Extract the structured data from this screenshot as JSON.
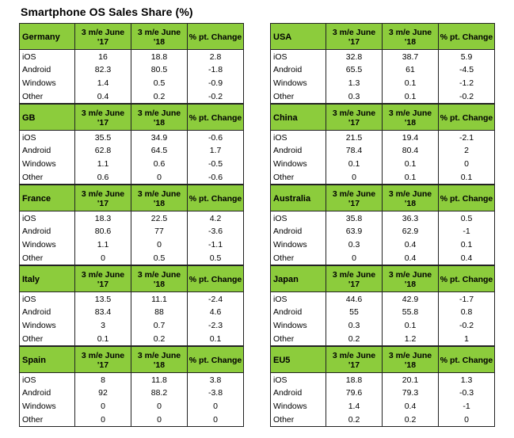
{
  "title": "Smartphone OS Sales Share (%)",
  "headers": {
    "col1": "3 m/e June '17",
    "col2": "3 m/e June '18",
    "col3": "% pt. Change"
  },
  "left": [
    {
      "region": "Germany",
      "rows": [
        {
          "os": "iOS",
          "v17": "16",
          "v18": "18.8",
          "chg": "2.8"
        },
        {
          "os": "Android",
          "v17": "82.3",
          "v18": "80.5",
          "chg": "-1.8"
        },
        {
          "os": "Windows",
          "v17": "1.4",
          "v18": "0.5",
          "chg": "-0.9"
        },
        {
          "os": "Other",
          "v17": "0.4",
          "v18": "0.2",
          "chg": "-0.2"
        }
      ]
    },
    {
      "region": "GB",
      "rows": [
        {
          "os": "iOS",
          "v17": "35.5",
          "v18": "34.9",
          "chg": "-0.6"
        },
        {
          "os": "Android",
          "v17": "62.8",
          "v18": "64.5",
          "chg": "1.7"
        },
        {
          "os": "Windows",
          "v17": "1.1",
          "v18": "0.6",
          "chg": "-0.5"
        },
        {
          "os": "Other",
          "v17": "0.6",
          "v18": "0",
          "chg": "-0.6"
        }
      ]
    },
    {
      "region": "France",
      "rows": [
        {
          "os": "iOS",
          "v17": "18.3",
          "v18": "22.5",
          "chg": "4.2"
        },
        {
          "os": "Android",
          "v17": "80.6",
          "v18": "77",
          "chg": "-3.6"
        },
        {
          "os": "Windows",
          "v17": "1.1",
          "v18": "0",
          "chg": "-1.1"
        },
        {
          "os": "Other",
          "v17": "0",
          "v18": "0.5",
          "chg": "0.5"
        }
      ]
    },
    {
      "region": "Italy",
      "rows": [
        {
          "os": "iOS",
          "v17": "13.5",
          "v18": "11.1",
          "chg": "-2.4"
        },
        {
          "os": "Android",
          "v17": "83.4",
          "v18": "88",
          "chg": "4.6"
        },
        {
          "os": "Windows",
          "v17": "3",
          "v18": "0.7",
          "chg": "-2.3"
        },
        {
          "os": "Other",
          "v17": "0.1",
          "v18": "0.2",
          "chg": "0.1"
        }
      ]
    },
    {
      "region": "Spain",
      "rows": [
        {
          "os": "iOS",
          "v17": "8",
          "v18": "11.8",
          "chg": "3.8"
        },
        {
          "os": "Android",
          "v17": "92",
          "v18": "88.2",
          "chg": "-3.8"
        },
        {
          "os": "Windows",
          "v17": "0",
          "v18": "0",
          "chg": "0"
        },
        {
          "os": "Other",
          "v17": "0",
          "v18": "0",
          "chg": "0"
        }
      ]
    }
  ],
  "right": [
    {
      "region": "USA",
      "rows": [
        {
          "os": "iOS",
          "v17": "32.8",
          "v18": "38.7",
          "chg": "5.9"
        },
        {
          "os": "Android",
          "v17": "65.5",
          "v18": "61",
          "chg": "-4.5"
        },
        {
          "os": "Windows",
          "v17": "1.3",
          "v18": "0.1",
          "chg": "-1.2"
        },
        {
          "os": "Other",
          "v17": "0.3",
          "v18": "0.1",
          "chg": "-0.2"
        }
      ]
    },
    {
      "region": "China",
      "rows": [
        {
          "os": "iOS",
          "v17": "21.5",
          "v18": "19.4",
          "chg": "-2.1"
        },
        {
          "os": "Android",
          "v17": "78.4",
          "v18": "80.4",
          "chg": "2"
        },
        {
          "os": "Windows",
          "v17": "0.1",
          "v18": "0.1",
          "chg": "0"
        },
        {
          "os": "Other",
          "v17": "0",
          "v18": "0.1",
          "chg": "0.1"
        }
      ]
    },
    {
      "region": "Australia",
      "rows": [
        {
          "os": "iOS",
          "v17": "35.8",
          "v18": "36.3",
          "chg": "0.5"
        },
        {
          "os": "Android",
          "v17": "63.9",
          "v18": "62.9",
          "chg": "-1"
        },
        {
          "os": "Windows",
          "v17": "0.3",
          "v18": "0.4",
          "chg": "0.1"
        },
        {
          "os": "Other",
          "v17": "0",
          "v18": "0.4",
          "chg": "0.4"
        }
      ]
    },
    {
      "region": "Japan",
      "rows": [
        {
          "os": "iOS",
          "v17": "44.6",
          "v18": "42.9",
          "chg": "-1.7"
        },
        {
          "os": "Android",
          "v17": "55",
          "v18": "55.8",
          "chg": "0.8"
        },
        {
          "os": "Windows",
          "v17": "0.3",
          "v18": "0.1",
          "chg": "-0.2"
        },
        {
          "os": "Other",
          "v17": "0.2",
          "v18": "1.2",
          "chg": "1"
        }
      ]
    },
    {
      "region": "EU5",
      "rows": [
        {
          "os": "iOS",
          "v17": "18.8",
          "v18": "20.1",
          "chg": "1.3"
        },
        {
          "os": "Android",
          "v17": "79.6",
          "v18": "79.3",
          "chg": "-0.3"
        },
        {
          "os": "Windows",
          "v17": "1.4",
          "v18": "0.4",
          "chg": "-1"
        },
        {
          "os": "Other",
          "v17": "0.2",
          "v18": "0.2",
          "chg": "0"
        }
      ]
    }
  ]
}
